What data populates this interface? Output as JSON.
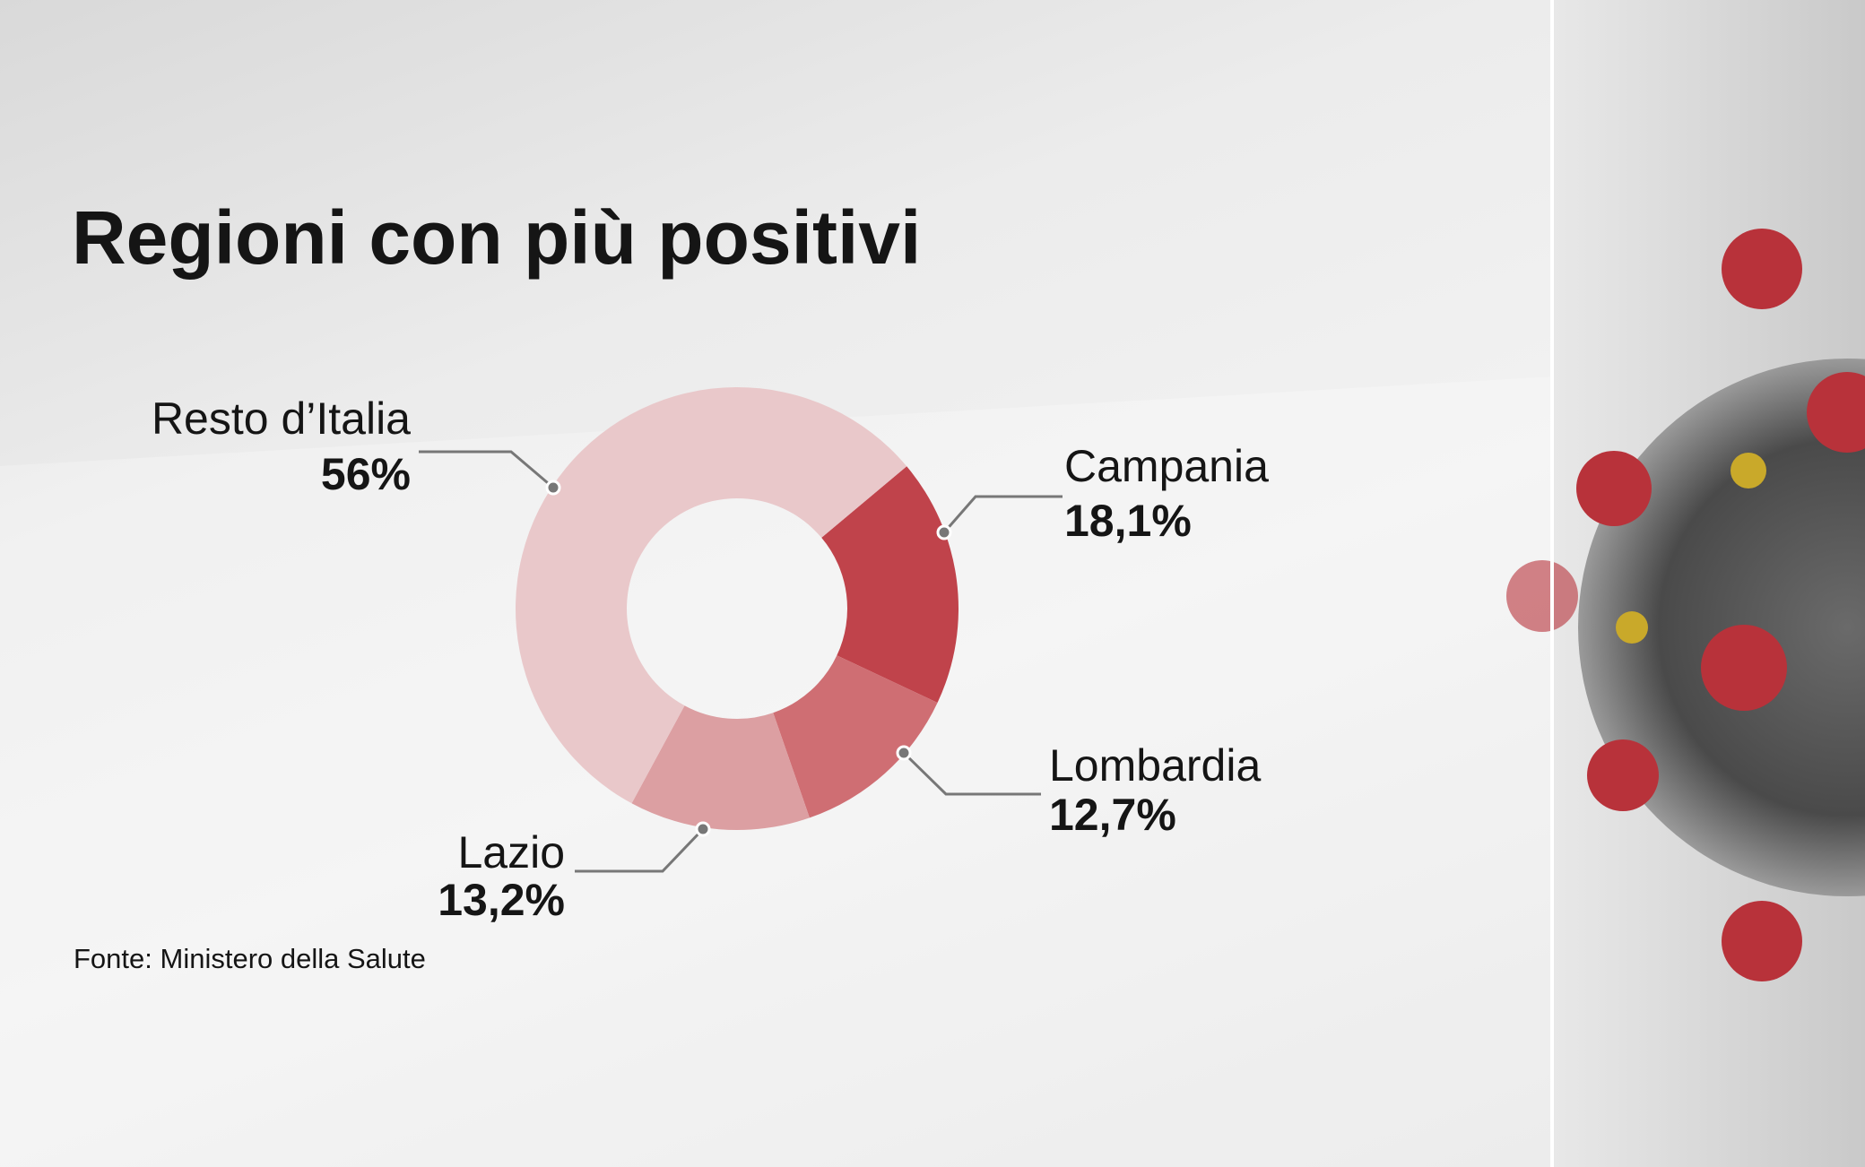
{
  "chart_data": {
    "type": "pie",
    "title": "Regioni con più positivi",
    "source": "Fonte: Ministero della Salute",
    "categories": [
      "Campania",
      "Lombardia",
      "Lazio",
      "Resto d’Italia"
    ],
    "values": [
      18.1,
      12.7,
      13.2,
      56
    ],
    "value_labels": [
      "18,1%",
      "12,7%",
      "13,2%",
      "56%"
    ],
    "colors": [
      "#c0434b",
      "#cf6e73",
      "#dc9fa2",
      "#e9c8ca"
    ]
  }
}
